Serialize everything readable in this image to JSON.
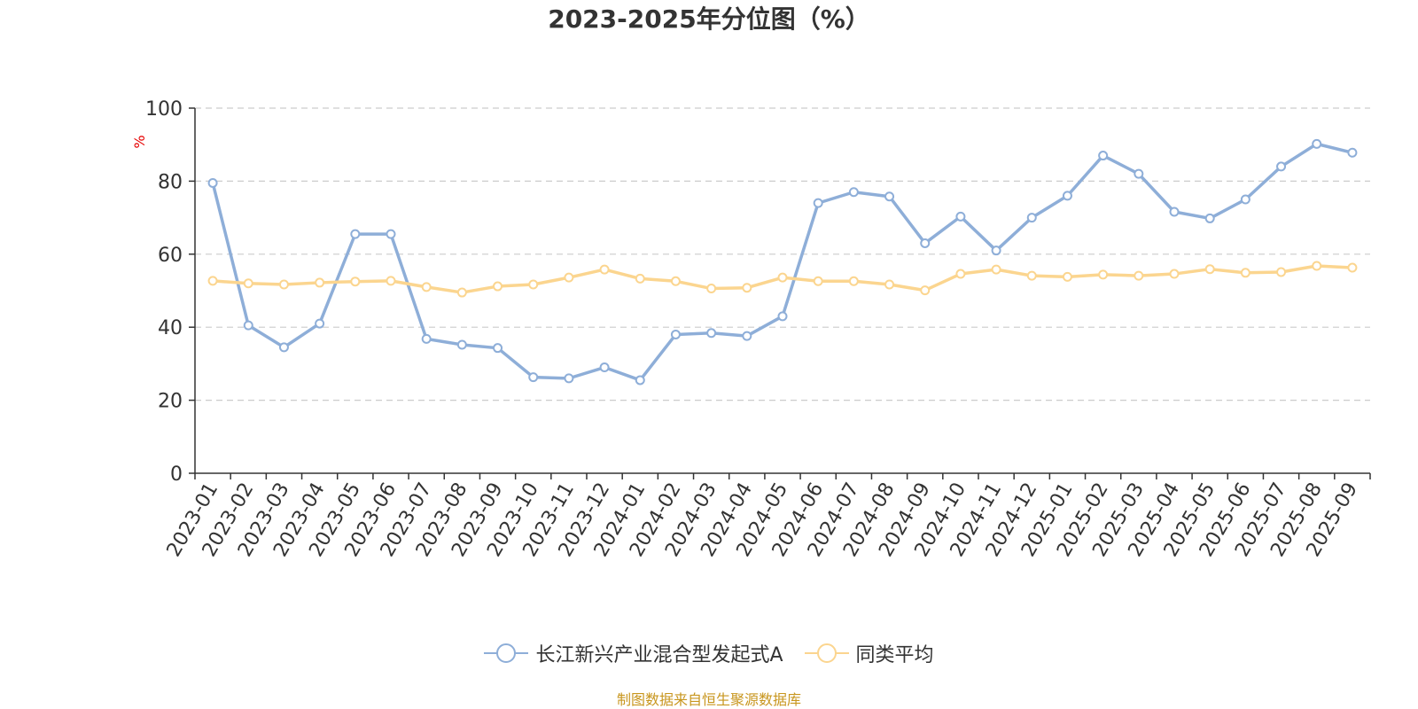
{
  "chart_data": {
    "type": "line",
    "title": "2023-2025年分位图（%）",
    "ylabel": "%",
    "xlabel": "",
    "ylim": [
      0,
      100
    ],
    "yticks": [
      0,
      20,
      40,
      60,
      80,
      100
    ],
    "grid": true,
    "legend_position": "bottom-center",
    "categories": [
      "2023-01",
      "2023-02",
      "2023-03",
      "2023-04",
      "2023-05",
      "2023-06",
      "2023-07",
      "2023-08",
      "2023-09",
      "2023-10",
      "2023-11",
      "2023-12",
      "2024-01",
      "2024-02",
      "2024-03",
      "2024-04",
      "2024-05",
      "2024-06",
      "2024-07",
      "2024-08",
      "2024-09",
      "2024-10",
      "2024-11",
      "2024-12",
      "2025-01",
      "2025-02",
      "2025-03",
      "2025-04",
      "2025-05",
      "2025-06",
      "2025-07",
      "2025-08",
      "2025-09"
    ],
    "series": [
      {
        "name": "长江新兴产业混合型发起式A",
        "color": "#8eaed8",
        "values": [
          79.5,
          40.5,
          34.5,
          41,
          65.5,
          65.5,
          36.8,
          35.2,
          34.3,
          26.3,
          26,
          29,
          25.5,
          38,
          38.4,
          37.6,
          43,
          74,
          77,
          75.8,
          63,
          70.3,
          61,
          70,
          76,
          87,
          82,
          71.6,
          69.8,
          75,
          84,
          90.2,
          87.8
        ]
      },
      {
        "name": "同类平均",
        "color": "#fbd58f",
        "values": [
          52.7,
          52,
          51.7,
          52.2,
          52.5,
          52.7,
          51,
          49.5,
          51.2,
          51.7,
          53.6,
          55.8,
          53.3,
          52.6,
          50.6,
          50.8,
          53.6,
          52.6,
          52.6,
          51.7,
          50.1,
          54.6,
          55.8,
          54.1,
          53.8,
          54.4,
          54.1,
          54.6,
          55.9,
          54.9,
          55.1,
          56.8,
          56.3
        ]
      }
    ]
  },
  "source_note": "制图数据来自恒生聚源数据库"
}
